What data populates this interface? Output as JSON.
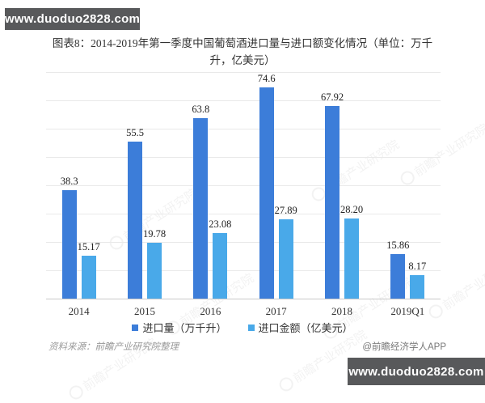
{
  "watermark_top": {
    "text": "www.duoduo2828.com"
  },
  "watermark_bottom": {
    "text": "www.duoduo2828.com"
  },
  "title": "图表8：2014-2019年第一季度中国葡萄酒进口量与进口额变化情况（单位：万千升，亿美元）",
  "chart_data": {
    "type": "bar",
    "title": "图表8：2014-2019年第一季度中国葡萄酒进口量与进口额变化情况（单位：万千升，亿美元）",
    "categories": [
      "2014",
      "2015",
      "2016",
      "2017",
      "2018",
      "2019Q1"
    ],
    "series": [
      {
        "name": "进口量（万千升）",
        "color": "#3c7dd9",
        "values": [
          38.3,
          55.5,
          63.8,
          74.6,
          67.92,
          15.86
        ],
        "labels": [
          "38.3",
          "55.5",
          "63.8",
          "74.6",
          "67.92",
          "15.86"
        ]
      },
      {
        "name": "进口金额（亿美元）",
        "color": "#49a9e9",
        "values": [
          15.17,
          19.78,
          23.08,
          27.89,
          28.2,
          8.17
        ],
        "labels": [
          "15.17",
          "19.78",
          "23.08",
          "27.89",
          "28.20",
          "8.17"
        ]
      }
    ],
    "xlabel": "",
    "ylabel": "",
    "ylim": [
      0,
      80
    ],
    "grid": true,
    "gridline_step": 10,
    "legend_position": "bottom",
    "value_labels": true
  },
  "background_watermark": {
    "text": "前瞻产业研究院"
  },
  "footer": {
    "source": "资料来源：前瞻产业研究院整理",
    "credit": "@前瞻经济学人APP"
  },
  "colors": {
    "bar_primary": "#3c7dd9",
    "bar_secondary": "#49a9e9",
    "watermark_box": "#58595b",
    "gridline": "#e9e9e9"
  }
}
